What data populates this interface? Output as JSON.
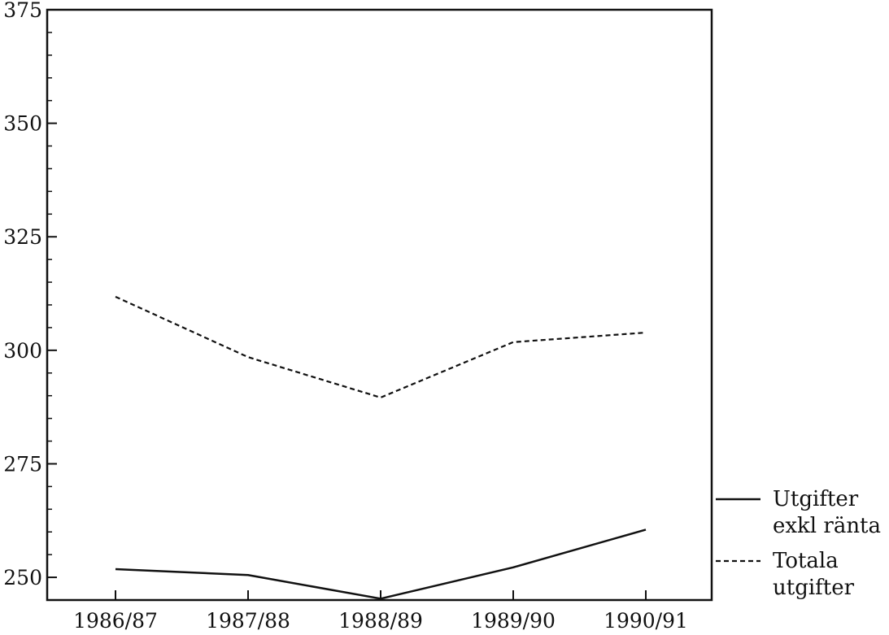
{
  "chart_data": {
    "type": "line",
    "categories": [
      "1986/87",
      "1987/88",
      "1988/89",
      "1989/90",
      "1990/91"
    ],
    "series": [
      {
        "name": "Utgifter exkl ränta",
        "name_lines": [
          "Utgifter",
          "exkl ränta"
        ],
        "style": "solid",
        "values": [
          251.8,
          250.5,
          245.3,
          252.2,
          260.5
        ]
      },
      {
        "name": "Totala utgifter",
        "name_lines": [
          "Totala",
          "utgifter"
        ],
        "style": "dashed",
        "values": [
          311.8,
          298.5,
          289.6,
          301.8,
          303.9
        ]
      }
    ],
    "yticks": [
      "250",
      "275",
      "300",
      "325",
      "350",
      "375"
    ],
    "ylim": [
      245,
      375
    ],
    "grid": false,
    "legend": "right"
  }
}
